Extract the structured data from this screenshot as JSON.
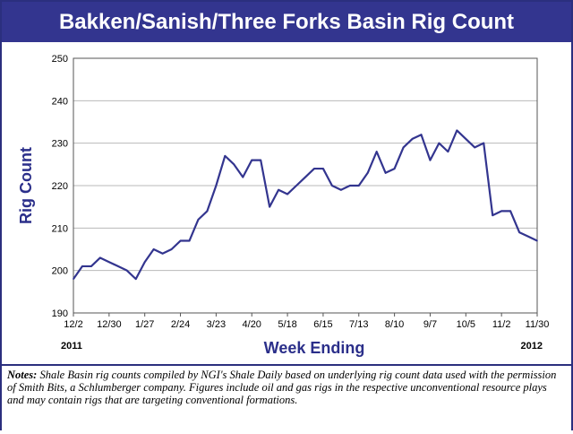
{
  "title": "Bakken/Sanish/Three Forks Basin Rig Count",
  "colors": {
    "title_bg": "#33358f",
    "line": "#33358f",
    "axis_title": "#2b2f8a",
    "grid": "#b9b9b9"
  },
  "chart_data": {
    "type": "line",
    "title": "Bakken/Sanish/Three Forks Basin Rig Count",
    "xlabel": "Week Ending",
    "ylabel": "Rig Count",
    "ylim": [
      190,
      250
    ],
    "yticks": [
      190,
      200,
      210,
      220,
      230,
      240,
      250
    ],
    "grid": true,
    "x_tick_labels": [
      "12/2",
      "12/30",
      "1/27",
      "2/24",
      "3/23",
      "4/20",
      "5/18",
      "6/15",
      "7/13",
      "8/10",
      "9/7",
      "10/5",
      "11/2",
      "11/30"
    ],
    "year_labels": {
      "start": "2011",
      "end": "2012"
    },
    "x": [
      "12/2",
      "12/9",
      "12/16",
      "12/23",
      "12/30",
      "1/6",
      "1/13",
      "1/20",
      "1/27",
      "2/3",
      "2/10",
      "2/17",
      "2/24",
      "3/2",
      "3/9",
      "3/16",
      "3/23",
      "3/30",
      "4/6",
      "4/13",
      "4/20",
      "4/27",
      "5/4",
      "5/11",
      "5/18",
      "5/25",
      "6/1",
      "6/8",
      "6/15",
      "6/22",
      "6/29",
      "7/6",
      "7/13",
      "7/20",
      "7/27",
      "8/3",
      "8/10",
      "8/17",
      "8/24",
      "8/31",
      "9/7",
      "9/14",
      "9/21",
      "9/28",
      "10/5",
      "10/12",
      "10/19",
      "10/26",
      "11/2",
      "11/9",
      "11/16",
      "11/23",
      "11/30"
    ],
    "values": [
      198,
      201,
      201,
      203,
      202,
      201,
      200,
      198,
      202,
      205,
      204,
      205,
      207,
      207,
      212,
      214,
      220,
      227,
      225,
      222,
      226,
      226,
      215,
      219,
      218,
      220,
      222,
      224,
      224,
      220,
      219,
      220,
      220,
      223,
      228,
      223,
      224,
      229,
      231,
      232,
      226,
      230,
      228,
      233,
      231,
      229,
      230,
      213,
      214,
      214,
      209,
      208,
      207
    ]
  },
  "notes": {
    "label": "Notes:",
    "text": "Shale Basin rig counts compiled by NGI's Shale Daily based on underlying rig count data used with the permission of Smith Bits, a Schlumberger company.  Figures include oil and gas rigs in the respective unconventional resource plays and may contain rigs that are targeting conventional formations."
  }
}
